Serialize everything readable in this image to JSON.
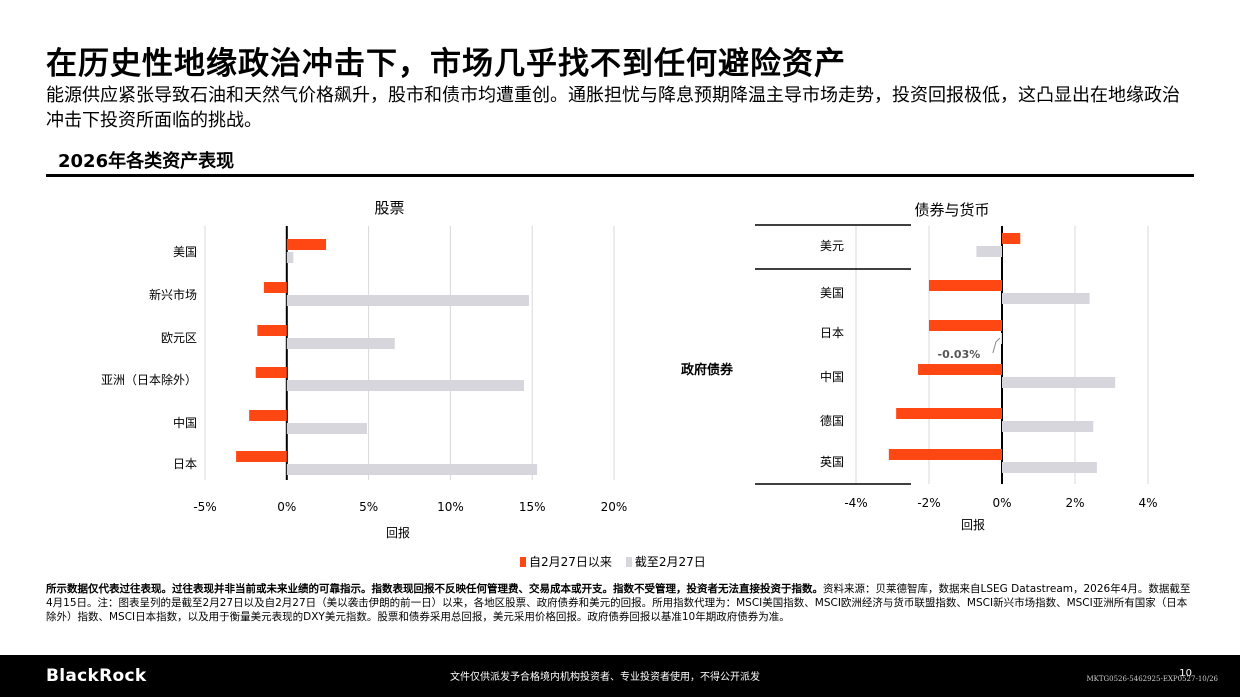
{
  "header": {
    "title": "在历史性地缘政治冲击下，市场几乎找不到任何避险资产",
    "subtitle": "能源供应紧张导致石油和天然气价格飙升，股市和债市均遭重创。通胀担忧与降息预期降温主导市场走势，投资回报极低，这凸显出在地缘政治冲击下投资所面临的挑战。",
    "section_title": "2026年各类资产表现"
  },
  "legend": [
    {
      "label": "自2月27日以来",
      "color": "#ff4713"
    },
    {
      "label": "截至2月27日",
      "color": "#d6d6dc"
    }
  ],
  "chart_data": [
    {
      "type": "bar",
      "orientation": "horizontal",
      "title": "股票",
      "xlabel": "回报",
      "xlim": [
        -5,
        20
      ],
      "x_ticks": [
        "-5%",
        "0%",
        "5%",
        "10%",
        "15%",
        "20%"
      ],
      "categories": [
        "美国",
        "新兴市场",
        "欧元区",
        "亚洲（日本除外）",
        "中国",
        "日本"
      ],
      "series": [
        {
          "name": "自2月27日以来",
          "color": "#ff4713",
          "values": [
            2.4,
            -1.4,
            -1.8,
            -1.9,
            -2.3,
            -3.1
          ]
        },
        {
          "name": "截至2月27日",
          "color": "#d6d6dc",
          "values": [
            0.4,
            14.8,
            6.6,
            14.5,
            4.9,
            15.3
          ]
        }
      ]
    },
    {
      "type": "bar",
      "orientation": "horizontal",
      "title": "债券与货币",
      "xlabel": "回报",
      "xlim": [
        -4,
        4
      ],
      "x_ticks": [
        "-4%",
        "-2%",
        "0%",
        "2%",
        "4%"
      ],
      "group_label": "政府债券",
      "categories": [
        "美元",
        "美国",
        "日本",
        "中国",
        "德国",
        "英国"
      ],
      "annotation": {
        "category": "日本",
        "series": "截至2月27日",
        "text": "-0.03%"
      },
      "series": [
        {
          "name": "自2月27日以来",
          "color": "#ff4713",
          "values": [
            0.5,
            -2.0,
            -2.0,
            -2.3,
            -2.9,
            -3.1
          ]
        },
        {
          "name": "截至2月27日",
          "color": "#d6d6dc",
          "values": [
            -0.7,
            2.4,
            -0.03,
            3.1,
            2.5,
            2.6
          ]
        }
      ]
    }
  ],
  "footnote": {
    "bold": "所示数据仅代表过往表现。过往表现并非当前或未来业绩的可靠指示。指数表现回报不反映任何管理费、交易成本或开支。指数不受管理，投资者无法直接投资于指数。",
    "text": "资料来源：贝莱德智库，数据来自LSEG Datastream，2026年4月。数据截至4月15日。注：图表呈列的是截至2月27日以及自2月27日（美以袭击伊朗的前一日）以来，各地区股票、政府债券和美元的回报。所用指数代理为：MSCI美国指数、MSCI欧洲经济与货币联盟指数、MSCI新兴市场指数、MSCI亚洲所有国家（日本除外）指数、MSCI日本指数，以及用于衡量美元表现的DXY美元指数。股票和债券采用总回报，美元采用价格回报。政府债券回报以基准10年期政府债券为准。"
  },
  "footer": {
    "logo": "BlackRock",
    "disclaimer": "文件仅供派发予合格境内机构投资者、专业投资者使用，不得公开派发",
    "code": "MKTG0526-5462925-EXP0527-10/26",
    "page": "10"
  }
}
